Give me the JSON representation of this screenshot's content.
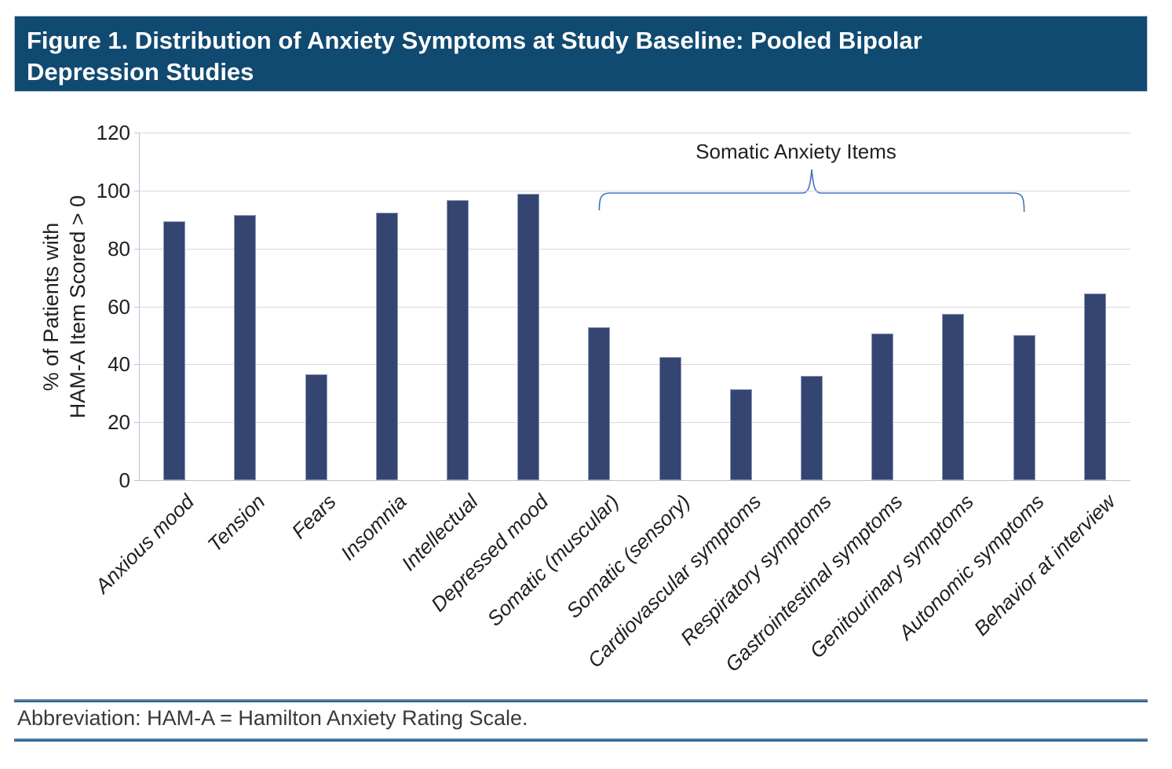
{
  "title": {
    "lines": [
      "Figure 1. Distribution of Anxiety Symptoms at Study Baseline: Pooled Bipolar",
      "Depression Studies"
    ]
  },
  "footer": {
    "text": "Abbreviation: HAM-A = Hamilton Anxiety Rating Scale."
  },
  "chart_data": {
    "type": "bar",
    "title": "",
    "xlabel": "",
    "ylabel": "% of Patients with HAM-A Item Scored > 0",
    "ylabel_lines": [
      "% of Patients with",
      "HAM-A Item Scored > 0"
    ],
    "categories": [
      "Anxious mood",
      "Tension",
      "Fears",
      "Insomnia",
      "Intellectual",
      "Depressed mood",
      "Somatic (muscular)",
      "Somatic (sensory)",
      "Cardiovascular symptoms",
      "Respiratory symptoms",
      "Gastrointestinal symptoms",
      "Genitourinary symptoms",
      "Autonomic symptoms",
      "Behavior at interview"
    ],
    "values": [
      89.5,
      91.5,
      36.5,
      92.3,
      96.8,
      98.9,
      52.9,
      42.5,
      31.3,
      36.0,
      50.7,
      57.5,
      50.2,
      64.6
    ],
    "ylim": [
      0,
      120
    ],
    "yticks": [
      0,
      20,
      40,
      60,
      80,
      100,
      120
    ],
    "grid": true,
    "legend": "none",
    "annotation": {
      "label": "Somatic Anxiety Items",
      "span": [
        6,
        12
      ]
    }
  },
  "colors": {
    "title_bar_bg": "#114a70",
    "title_text": "#ffffff",
    "bar_fill": "#344571",
    "bar_edge": "#8e99ba",
    "gridline": "#d9d9d9",
    "y_axis_line": "#b7c4e0",
    "brace": "#4472c4",
    "footer_rule": "#2e6da4",
    "text": "#1f1f1f"
  }
}
